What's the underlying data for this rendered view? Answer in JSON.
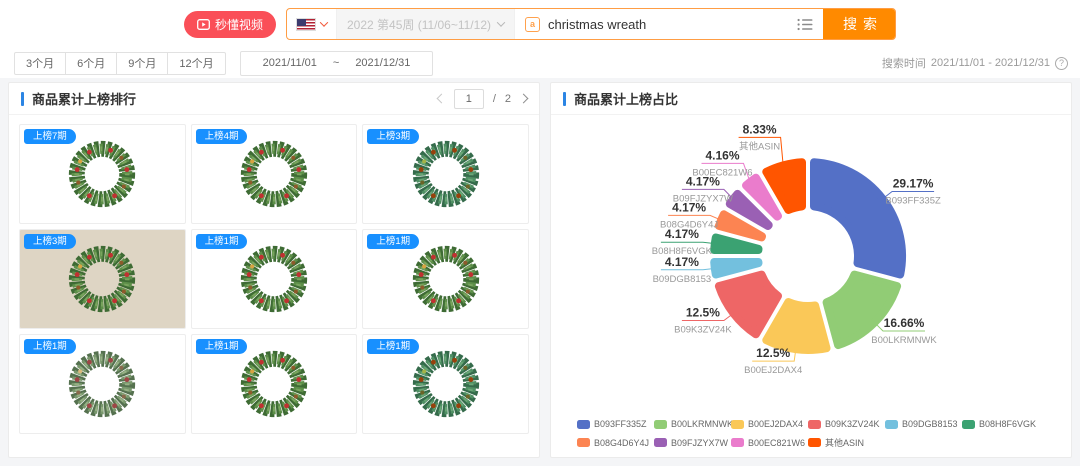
{
  "topbar": {
    "video_button_label": "秒懂视频",
    "country_selector": {
      "selected": "US"
    },
    "week_selector_value": "2022 第45周 (11/06~11/12)",
    "search_input_value": "christmas wreath",
    "search_button_label": "搜索"
  },
  "filter_bar": {
    "period_options": [
      "3个月",
      "6个月",
      "9个月",
      "12个月"
    ],
    "date_range": {
      "start": "2021/11/01",
      "separator": "~",
      "end": "2021/12/31"
    },
    "search_time": {
      "label": "搜索时间",
      "value": "2021/11/01 - 2021/12/31",
      "help": "?"
    }
  },
  "ranking_panel": {
    "title": "商品累计上榜排行",
    "pagination": {
      "current": "1",
      "divider": "/",
      "total": "2"
    },
    "products": [
      {
        "badge": "上榜7期"
      },
      {
        "badge": "上榜4期"
      },
      {
        "badge": "上榜3期"
      },
      {
        "badge": "上榜3期"
      },
      {
        "badge": "上榜1期"
      },
      {
        "badge": "上榜1期"
      },
      {
        "badge": "上榜1期"
      },
      {
        "badge": "上榜1期"
      },
      {
        "badge": "上榜1期"
      }
    ]
  },
  "share_panel": {
    "title": "商品累计上榜占比",
    "chart_data": {
      "type": "pie",
      "variant": "donut",
      "start_angle": "top",
      "direction": "clockwise",
      "inner_radius_ratio": 0.53,
      "legend_position": "bottom",
      "series": [
        {
          "name": "B093FF335Z",
          "value": 29.17,
          "percent_label": "29.17%",
          "color": "#5470c6"
        },
        {
          "name": "B00LKRMNWK",
          "value": 16.66,
          "percent_label": "16.66%",
          "color": "#91cc75"
        },
        {
          "name": "B00EJ2DAX4",
          "value": 12.5,
          "percent_label": "12.5%",
          "color": "#fac858"
        },
        {
          "name": "B09K3ZV24K",
          "value": 12.5,
          "percent_label": "12.5%",
          "color": "#ee6666"
        },
        {
          "name": "B09DGB8153",
          "value": 4.17,
          "percent_label": "4.17%",
          "color": "#73c0de"
        },
        {
          "name": "B08H8F6VGK",
          "value": 4.17,
          "percent_label": "4.17%",
          "color": "#3ba272"
        },
        {
          "name": "B08G4D6Y4J",
          "value": 4.17,
          "percent_label": "4.17%",
          "color": "#fc8452"
        },
        {
          "name": "B09FJZYX7W",
          "value": 4.17,
          "percent_label": "4.17%",
          "color": "#9a60b4"
        },
        {
          "name": "B00EC821W6",
          "value": 4.16,
          "percent_label": "4.16%",
          "color": "#ea7ccc"
        },
        {
          "name": "其他ASIN",
          "value": 8.33,
          "percent_label": "8.33%",
          "color": "#ff5500"
        }
      ]
    }
  },
  "colors": {
    "accent_blue": "#2b85e4",
    "badge_blue": "#1890ff",
    "search_button_orange": "#ff8a00",
    "video_button_red": "#fa4f58"
  },
  "icons": {
    "video_button": "play-video-icon",
    "country_selector": "us-flag-icon",
    "dropdowns": "chevron-down-icon",
    "search_prefix": "keyword-icon",
    "search_suffix": "list-icon",
    "search_time_help": "question-circle-icon",
    "pager_prev": "chevron-left-icon",
    "pager_next": "chevron-right-icon"
  }
}
